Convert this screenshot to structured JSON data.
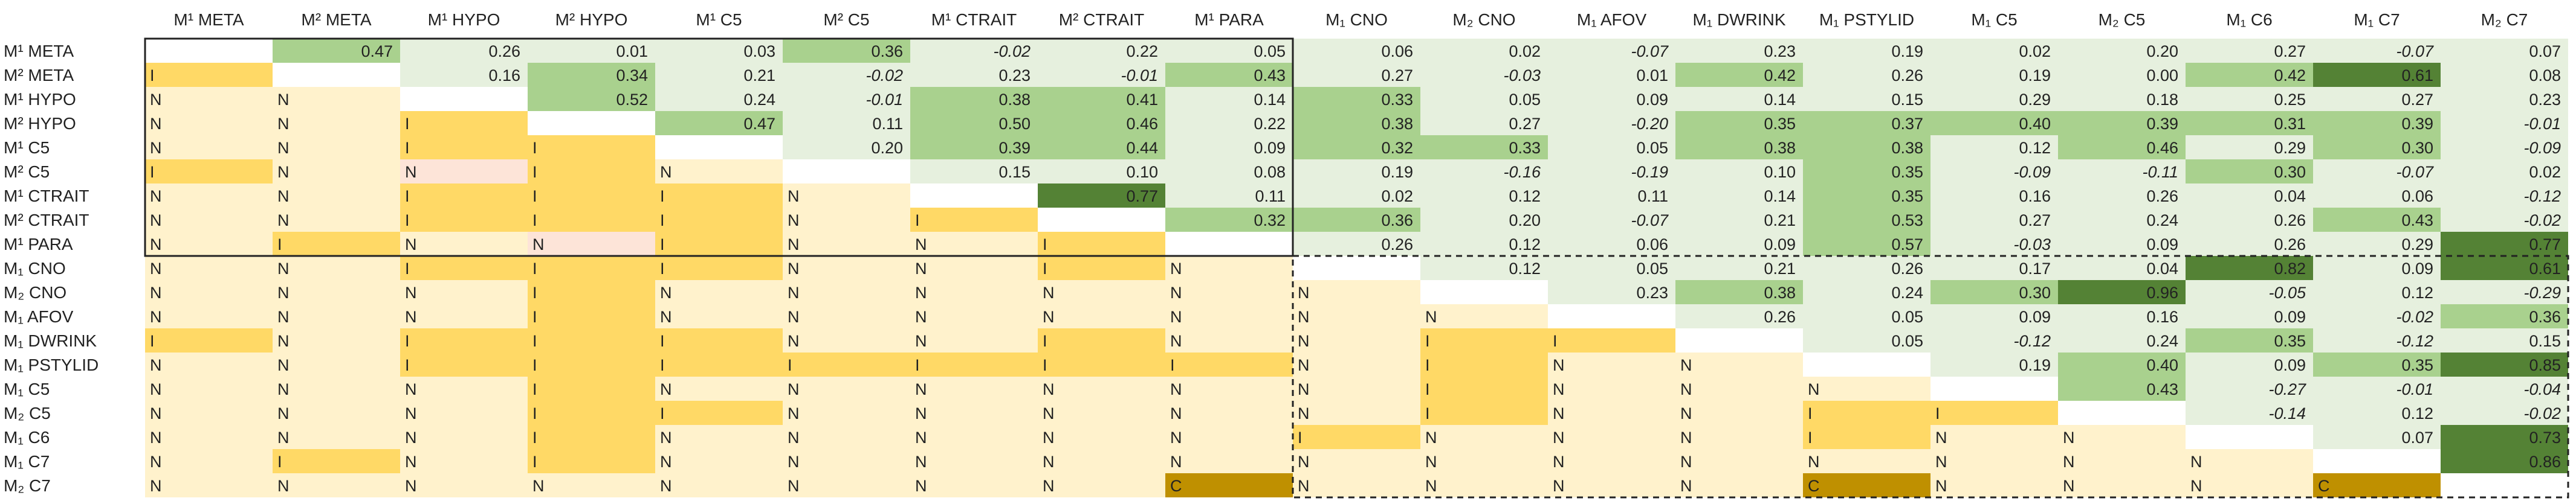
{
  "chart_data": {
    "type": "heatmap",
    "title": "",
    "columns": [
      "M¹ META",
      "M² META",
      "M¹ HYPO",
      "M² HYPO",
      "M¹ C5",
      "M² C5",
      "M¹ CTRAIT",
      "M² CTRAIT",
      "M¹ PARA",
      "M₁ CNO",
      "M₂ CNO",
      "M₁ AFOV",
      "M₁ DWRINK",
      "M₁ PSTYLID",
      "M₁ C5",
      "M₂ C5",
      "M₁ C6",
      "M₁ C7",
      "M₂ C7"
    ],
    "rows": [
      "M¹ META",
      "M² META",
      "M¹ HYPO",
      "M² HYPO",
      "M¹ C5",
      "M² C5",
      "M¹ CTRAIT",
      "M² CTRAIT",
      "M¹ PARA",
      "M₁ CNO",
      "M₂ CNO",
      "M₁ AFOV",
      "M₁ DWRINK",
      "M₁ PSTYLID",
      "M₁ C5",
      "M₂ C5",
      "M₁ C6",
      "M₁ C7",
      "M₂ C7"
    ],
    "upper_values": [
      [
        "",
        "0.47",
        "0.26",
        "0.01",
        "0.03",
        "0.36",
        "-0.02",
        "0.22",
        "0.05",
        "0.06",
        "0.02",
        "-0.07",
        "0.23",
        "0.19",
        "0.02",
        "0.20",
        "0.27",
        "-0.07",
        "0.07"
      ],
      [
        "",
        "",
        "0.16",
        "0.34",
        "0.21",
        "-0.02",
        "0.23",
        "-0.01",
        "0.43",
        "0.27",
        "-0.03",
        "0.01",
        "0.42",
        "0.26",
        "0.19",
        "0.00",
        "0.42",
        "0.61",
        "0.08"
      ],
      [
        "",
        "",
        "",
        "0.52",
        "0.24",
        "-0.01",
        "0.38",
        "0.41",
        "0.14",
        "0.33",
        "0.05",
        "0.09",
        "0.14",
        "0.15",
        "0.29",
        "0.18",
        "0.25",
        "0.27",
        "0.23"
      ],
      [
        "",
        "",
        "",
        "",
        "0.47",
        "0.11",
        "0.50",
        "0.46",
        "0.22",
        "0.38",
        "0.27",
        "-0.20",
        "0.35",
        "0.37",
        "0.40",
        "0.39",
        "0.31",
        "0.39",
        "-0.01"
      ],
      [
        "",
        "",
        "",
        "",
        "",
        "0.20",
        "0.39",
        "0.44",
        "0.09",
        "0.32",
        "0.33",
        "0.05",
        "0.38",
        "0.38",
        "0.12",
        "0.46",
        "0.29",
        "0.30",
        "-0.09"
      ],
      [
        "",
        "",
        "",
        "",
        "",
        "",
        "0.15",
        "0.10",
        "0.08",
        "0.19",
        "-0.16",
        "-0.19",
        "0.10",
        "0.35",
        "-0.09",
        "-0.11",
        "0.30",
        "-0.07",
        "0.02"
      ],
      [
        "",
        "",
        "",
        "",
        "",
        "",
        "",
        "0.77",
        "0.11",
        "0.02",
        "0.12",
        "0.11",
        "0.14",
        "0.35",
        "0.16",
        "0.26",
        "0.04",
        "0.06",
        "-0.12"
      ],
      [
        "",
        "",
        "",
        "",
        "",
        "",
        "",
        "",
        "0.32",
        "0.36",
        "0.20",
        "-0.07",
        "0.21",
        "0.53",
        "0.27",
        "0.24",
        "0.26",
        "0.43",
        "-0.02"
      ],
      [
        "",
        "",
        "",
        "",
        "",
        "",
        "",
        "",
        "",
        "0.26",
        "0.12",
        "0.06",
        "0.09",
        "0.57",
        "-0.03",
        "0.09",
        "0.26",
        "0.29",
        "0.77"
      ],
      [
        "",
        "",
        "",
        "",
        "",
        "",
        "",
        "",
        "",
        "",
        "0.12",
        "0.05",
        "0.21",
        "0.26",
        "0.17",
        "0.04",
        "0.82",
        "0.09",
        "0.61"
      ],
      [
        "",
        "",
        "",
        "",
        "",
        "",
        "",
        "",
        "",
        "",
        "",
        "0.23",
        "0.38",
        "0.24",
        "0.30",
        "0.96",
        "-0.05",
        "0.12",
        "-0.29"
      ],
      [
        "",
        "",
        "",
        "",
        "",
        "",
        "",
        "",
        "",
        "",
        "",
        "",
        "0.26",
        "0.05",
        "0.09",
        "0.16",
        "0.09",
        "-0.02",
        "0.36"
      ],
      [
        "",
        "",
        "",
        "",
        "",
        "",
        "",
        "",
        "",
        "",
        "",
        "",
        "",
        "0.05",
        "-0.12",
        "0.24",
        "0.35",
        "-0.12",
        "0.15"
      ],
      [
        "",
        "",
        "",
        "",
        "",
        "",
        "",
        "",
        "",
        "",
        "",
        "",
        "",
        "",
        "0.19",
        "0.40",
        "0.09",
        "0.35",
        "0.85"
      ],
      [
        "",
        "",
        "",
        "",
        "",
        "",
        "",
        "",
        "",
        "",
        "",
        "",
        "",
        "",
        "",
        "0.43",
        "-0.27",
        "-0.01",
        "-0.04"
      ],
      [
        "",
        "",
        "",
        "",
        "",
        "",
        "",
        "",
        "",
        "",
        "",
        "",
        "",
        "",
        "",
        "",
        "-0.14",
        "0.12",
        "-0.02"
      ],
      [
        "",
        "",
        "",
        "",
        "",
        "",
        "",
        "",
        "",
        "",
        "",
        "",
        "",
        "",
        "",
        "",
        "",
        "0.07",
        "0.73"
      ],
      [
        "",
        "",
        "",
        "",
        "",
        "",
        "",
        "",
        "",
        "",
        "",
        "",
        "",
        "",
        "",
        "",
        "",
        "",
        "0.86"
      ],
      [
        "",
        "",
        "",
        "",
        "",
        "",
        "",
        "",
        "",
        "",
        "",
        "",
        "",
        "",
        "",
        "",
        "",
        "",
        ""
      ]
    ],
    "lower_letters": [
      [
        "",
        "",
        "",
        "",
        "",
        "",
        "",
        "",
        "",
        "",
        "",
        "",
        "",
        "",
        "",
        "",
        "",
        "",
        ""
      ],
      [
        "I",
        "",
        "",
        "",
        "",
        "",
        "",
        "",
        "",
        "",
        "",
        "",
        "",
        "",
        "",
        "",
        "",
        "",
        ""
      ],
      [
        "N",
        "N",
        "",
        "",
        "",
        "",
        "",
        "",
        "",
        "",
        "",
        "",
        "",
        "",
        "",
        "",
        "",
        "",
        ""
      ],
      [
        "N",
        "N",
        "I",
        "",
        "",
        "",
        "",
        "",
        "",
        "",
        "",
        "",
        "",
        "",
        "",
        "",
        "",
        "",
        ""
      ],
      [
        "N",
        "N",
        "I",
        "I",
        "",
        "",
        "",
        "",
        "",
        "",
        "",
        "",
        "",
        "",
        "",
        "",
        "",
        "",
        ""
      ],
      [
        "I",
        "N",
        "N",
        "I",
        "N",
        "",
        "",
        "",
        "",
        "",
        "",
        "",
        "",
        "",
        "",
        "",
        "",
        "",
        ""
      ],
      [
        "N",
        "N",
        "I",
        "I",
        "I",
        "N",
        "",
        "",
        "",
        "",
        "",
        "",
        "",
        "",
        "",
        "",
        "",
        "",
        ""
      ],
      [
        "N",
        "N",
        "I",
        "I",
        "I",
        "N",
        "I",
        "",
        "",
        "",
        "",
        "",
        "",
        "",
        "",
        "",
        "",
        "",
        ""
      ],
      [
        "N",
        "I",
        "N",
        "N",
        "I",
        "N",
        "N",
        "I",
        "",
        "",
        "",
        "",
        "",
        "",
        "",
        "",
        "",
        "",
        ""
      ],
      [
        "N",
        "N",
        "I",
        "I",
        "I",
        "N",
        "N",
        "I",
        "N",
        "",
        "",
        "",
        "",
        "",
        "",
        "",
        "",
        "",
        ""
      ],
      [
        "N",
        "N",
        "N",
        "I",
        "N",
        "N",
        "N",
        "N",
        "N",
        "N",
        "",
        "",
        "",
        "",
        "",
        "",
        "",
        "",
        ""
      ],
      [
        "N",
        "N",
        "N",
        "I",
        "N",
        "N",
        "N",
        "N",
        "N",
        "N",
        "N",
        "",
        "",
        "",
        "",
        "",
        "",
        "",
        ""
      ],
      [
        "I",
        "N",
        "I",
        "I",
        "I",
        "N",
        "N",
        "I",
        "N",
        "N",
        "I",
        "I",
        "",
        "",
        "",
        "",
        "",
        "",
        ""
      ],
      [
        "N",
        "N",
        "I",
        "I",
        "I",
        "I",
        "I",
        "I",
        "I",
        "N",
        "I",
        "N",
        "N",
        "",
        "",
        "",
        "",
        "",
        ""
      ],
      [
        "N",
        "N",
        "N",
        "I",
        "N",
        "N",
        "N",
        "N",
        "N",
        "N",
        "I",
        "N",
        "N",
        "N",
        "",
        "",
        "",
        "",
        ""
      ],
      [
        "N",
        "N",
        "N",
        "I",
        "I",
        "N",
        "N",
        "N",
        "N",
        "N",
        "I",
        "N",
        "N",
        "I",
        "I",
        "",
        "",
        "",
        ""
      ],
      [
        "N",
        "N",
        "N",
        "I",
        "N",
        "N",
        "N",
        "N",
        "N",
        "I",
        "N",
        "N",
        "N",
        "I",
        "N",
        "N",
        "",
        "",
        ""
      ],
      [
        "N",
        "I",
        "N",
        "I",
        "N",
        "N",
        "N",
        "N",
        "N",
        "N",
        "N",
        "N",
        "N",
        "N",
        "N",
        "N",
        "N",
        "",
        ""
      ],
      [
        "N",
        "N",
        "N",
        "N",
        "N",
        "N",
        "N",
        "N",
        "C",
        "N",
        "N",
        "N",
        "N",
        "C",
        "N",
        "N",
        "N",
        "C",
        ""
      ]
    ],
    "colors": {
      "upper_light": "#e6f0de",
      "upper_mid": "#a9d18e",
      "upper_dark": "#548235",
      "lower_N": "#fff2cc",
      "lower_I": "#ffd966",
      "lower_C": "#bf9000",
      "lower_pink": "#fde4d8",
      "plain": "#ffffff"
    },
    "pink_cells": [
      [
        8,
        3
      ],
      [
        5,
        2
      ]
    ]
  }
}
